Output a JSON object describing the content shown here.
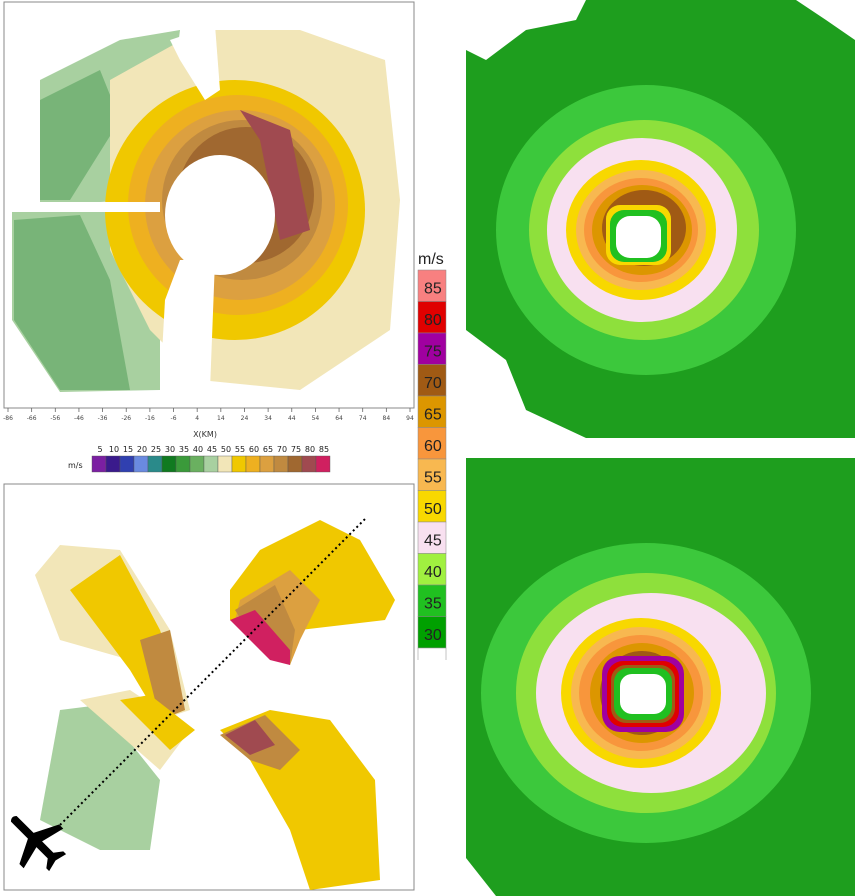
{
  "chart_data": [
    {
      "type": "heatmap",
      "panel": "top-left",
      "xlabel": "X(KM)",
      "x_ticks": [
        -86,
        -66,
        -56,
        -46,
        -36,
        -26,
        -16,
        -6,
        4,
        14,
        24,
        34,
        44,
        54,
        64,
        74,
        84,
        94
      ],
      "field": "wind speed",
      "units": "m/s"
    },
    {
      "type": "heatmap",
      "panel": "bottom-left",
      "flight_track": "dotted line from lower-left (aircraft) to upper-right",
      "field": "wind speed"
    },
    {
      "type": "heatmap",
      "panel": "top-right",
      "field": "wind speed"
    },
    {
      "type": "heatmap",
      "panel": "bottom-right",
      "field": "wind speed"
    }
  ],
  "small_colorbar": {
    "units": "m/s",
    "labels": [
      "5",
      "10",
      "15",
      "20",
      "25",
      "30",
      "35",
      "40",
      "45",
      "50",
      "55",
      "60",
      "65",
      "70",
      "75",
      "80",
      "85"
    ],
    "colors": [
      "#7b1fa2",
      "#3a1a8c",
      "#3040b0",
      "#6a8ae0",
      "#2a8a8a",
      "#107a20",
      "#3a9a3a",
      "#6ab060",
      "#a8d0a0",
      "#f2e6b8",
      "#f0c800",
      "#eeb020",
      "#dca040",
      "#c08a40",
      "#a06830",
      "#a04a50",
      "#d02060"
    ]
  },
  "big_colorbar": {
    "units": "m/s",
    "labels": [
      "85",
      "80",
      "75",
      "70",
      "65",
      "60",
      "55",
      "50",
      "45",
      "40",
      "35",
      "30"
    ],
    "colors": [
      "#f88080",
      "#e00000",
      "#a000a0",
      "#a05a14",
      "#dc9600",
      "#f8963c",
      "#f8b850",
      "#f8d800",
      "#f8e0f0",
      "#a0f040",
      "#20c020",
      "#00a000",
      "#ffffff"
    ]
  },
  "palette": {
    "green_dark": "#1e9e1e",
    "green_mid": "#3cc83c",
    "green_light": "#8ee03c",
    "pink": "#f8e0f0",
    "tan": "#f2e6b8",
    "sage": "#a8d0a0",
    "sage_dark": "#78b478"
  }
}
